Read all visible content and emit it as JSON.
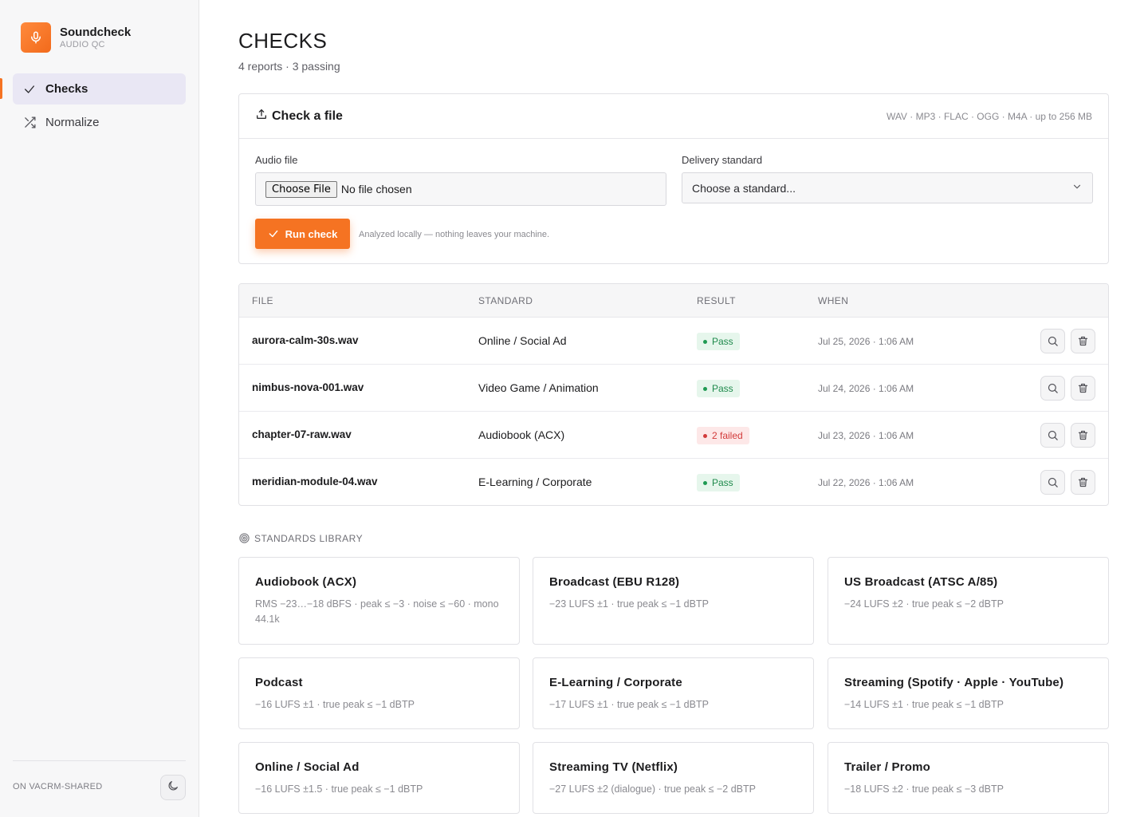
{
  "app": {
    "name": "Soundcheck",
    "subtitle": "AUDIO QC",
    "accent_color": "#f57322"
  },
  "sidebar": {
    "items": [
      {
        "label": "Checks",
        "icon": "check-icon",
        "active": true
      },
      {
        "label": "Normalize",
        "icon": "shuffle-icon",
        "active": false
      }
    ],
    "footer_label": "ON VACRM-SHARED",
    "theme_icon": "moon-icon"
  },
  "page": {
    "title": "CHECKS",
    "subtitle": "4 reports · 3 passing"
  },
  "upload": {
    "title": "Check a file",
    "formats": "WAV · MP3 · FLAC · OGG · M4A · up to 256 MB",
    "audio_label": "Audio file",
    "choose_button": "Choose File",
    "no_file": "No file chosen",
    "standard_label": "Delivery standard",
    "standard_placeholder": "Choose a standard...",
    "run_button": "Run check",
    "note": "Analyzed locally — nothing leaves your machine."
  },
  "table": {
    "columns": [
      "FILE",
      "STANDARD",
      "RESULT",
      "WHEN"
    ],
    "rows": [
      {
        "file": "aurora-calm-30s.wav",
        "standard": "Online / Social Ad",
        "result": "Pass",
        "status": "pass",
        "when": "Jul 25, 2026 · 1:06 AM"
      },
      {
        "file": "nimbus-nova-001.wav",
        "standard": "Video Game / Animation",
        "result": "Pass",
        "status": "pass",
        "when": "Jul 24, 2026 · 1:06 AM"
      },
      {
        "file": "chapter-07-raw.wav",
        "standard": "Audiobook (ACX)",
        "result": "2 failed",
        "status": "fail",
        "when": "Jul 23, 2026 · 1:06 AM"
      },
      {
        "file": "meridian-module-04.wav",
        "standard": "E-Learning / Corporate",
        "result": "Pass",
        "status": "pass",
        "when": "Jul 22, 2026 · 1:06 AM"
      }
    ]
  },
  "library": {
    "title": "STANDARDS LIBRARY",
    "standards": [
      {
        "name": "Audiobook (ACX)",
        "spec": "RMS −23…−18 dBFS · peak ≤ −3 · noise ≤ −60 · mono 44.1k"
      },
      {
        "name": "Broadcast (EBU R128)",
        "spec": "−23 LUFS ±1 · true peak ≤ −1 dBTP"
      },
      {
        "name": "US Broadcast (ATSC A/85)",
        "spec": "−24 LUFS ±2 · true peak ≤ −2 dBTP"
      },
      {
        "name": "Podcast",
        "spec": "−16 LUFS ±1 · true peak ≤ −1 dBTP"
      },
      {
        "name": "E-Learning / Corporate",
        "spec": "−17 LUFS ±1 · true peak ≤ −1 dBTP"
      },
      {
        "name": "Streaming (Spotify · Apple · YouTube)",
        "spec": "−14 LUFS ±1 · true peak ≤ −1 dBTP"
      },
      {
        "name": "Online / Social Ad",
        "spec": "−16 LUFS ±1.5 · true peak ≤ −1 dBTP"
      },
      {
        "name": "Streaming TV (Netflix)",
        "spec": "−27 LUFS ±2 (dialogue) · true peak ≤ −2 dBTP"
      },
      {
        "name": "Trailer / Promo",
        "spec": "−18 LUFS ±2 · true peak ≤ −3 dBTP"
      }
    ]
  }
}
